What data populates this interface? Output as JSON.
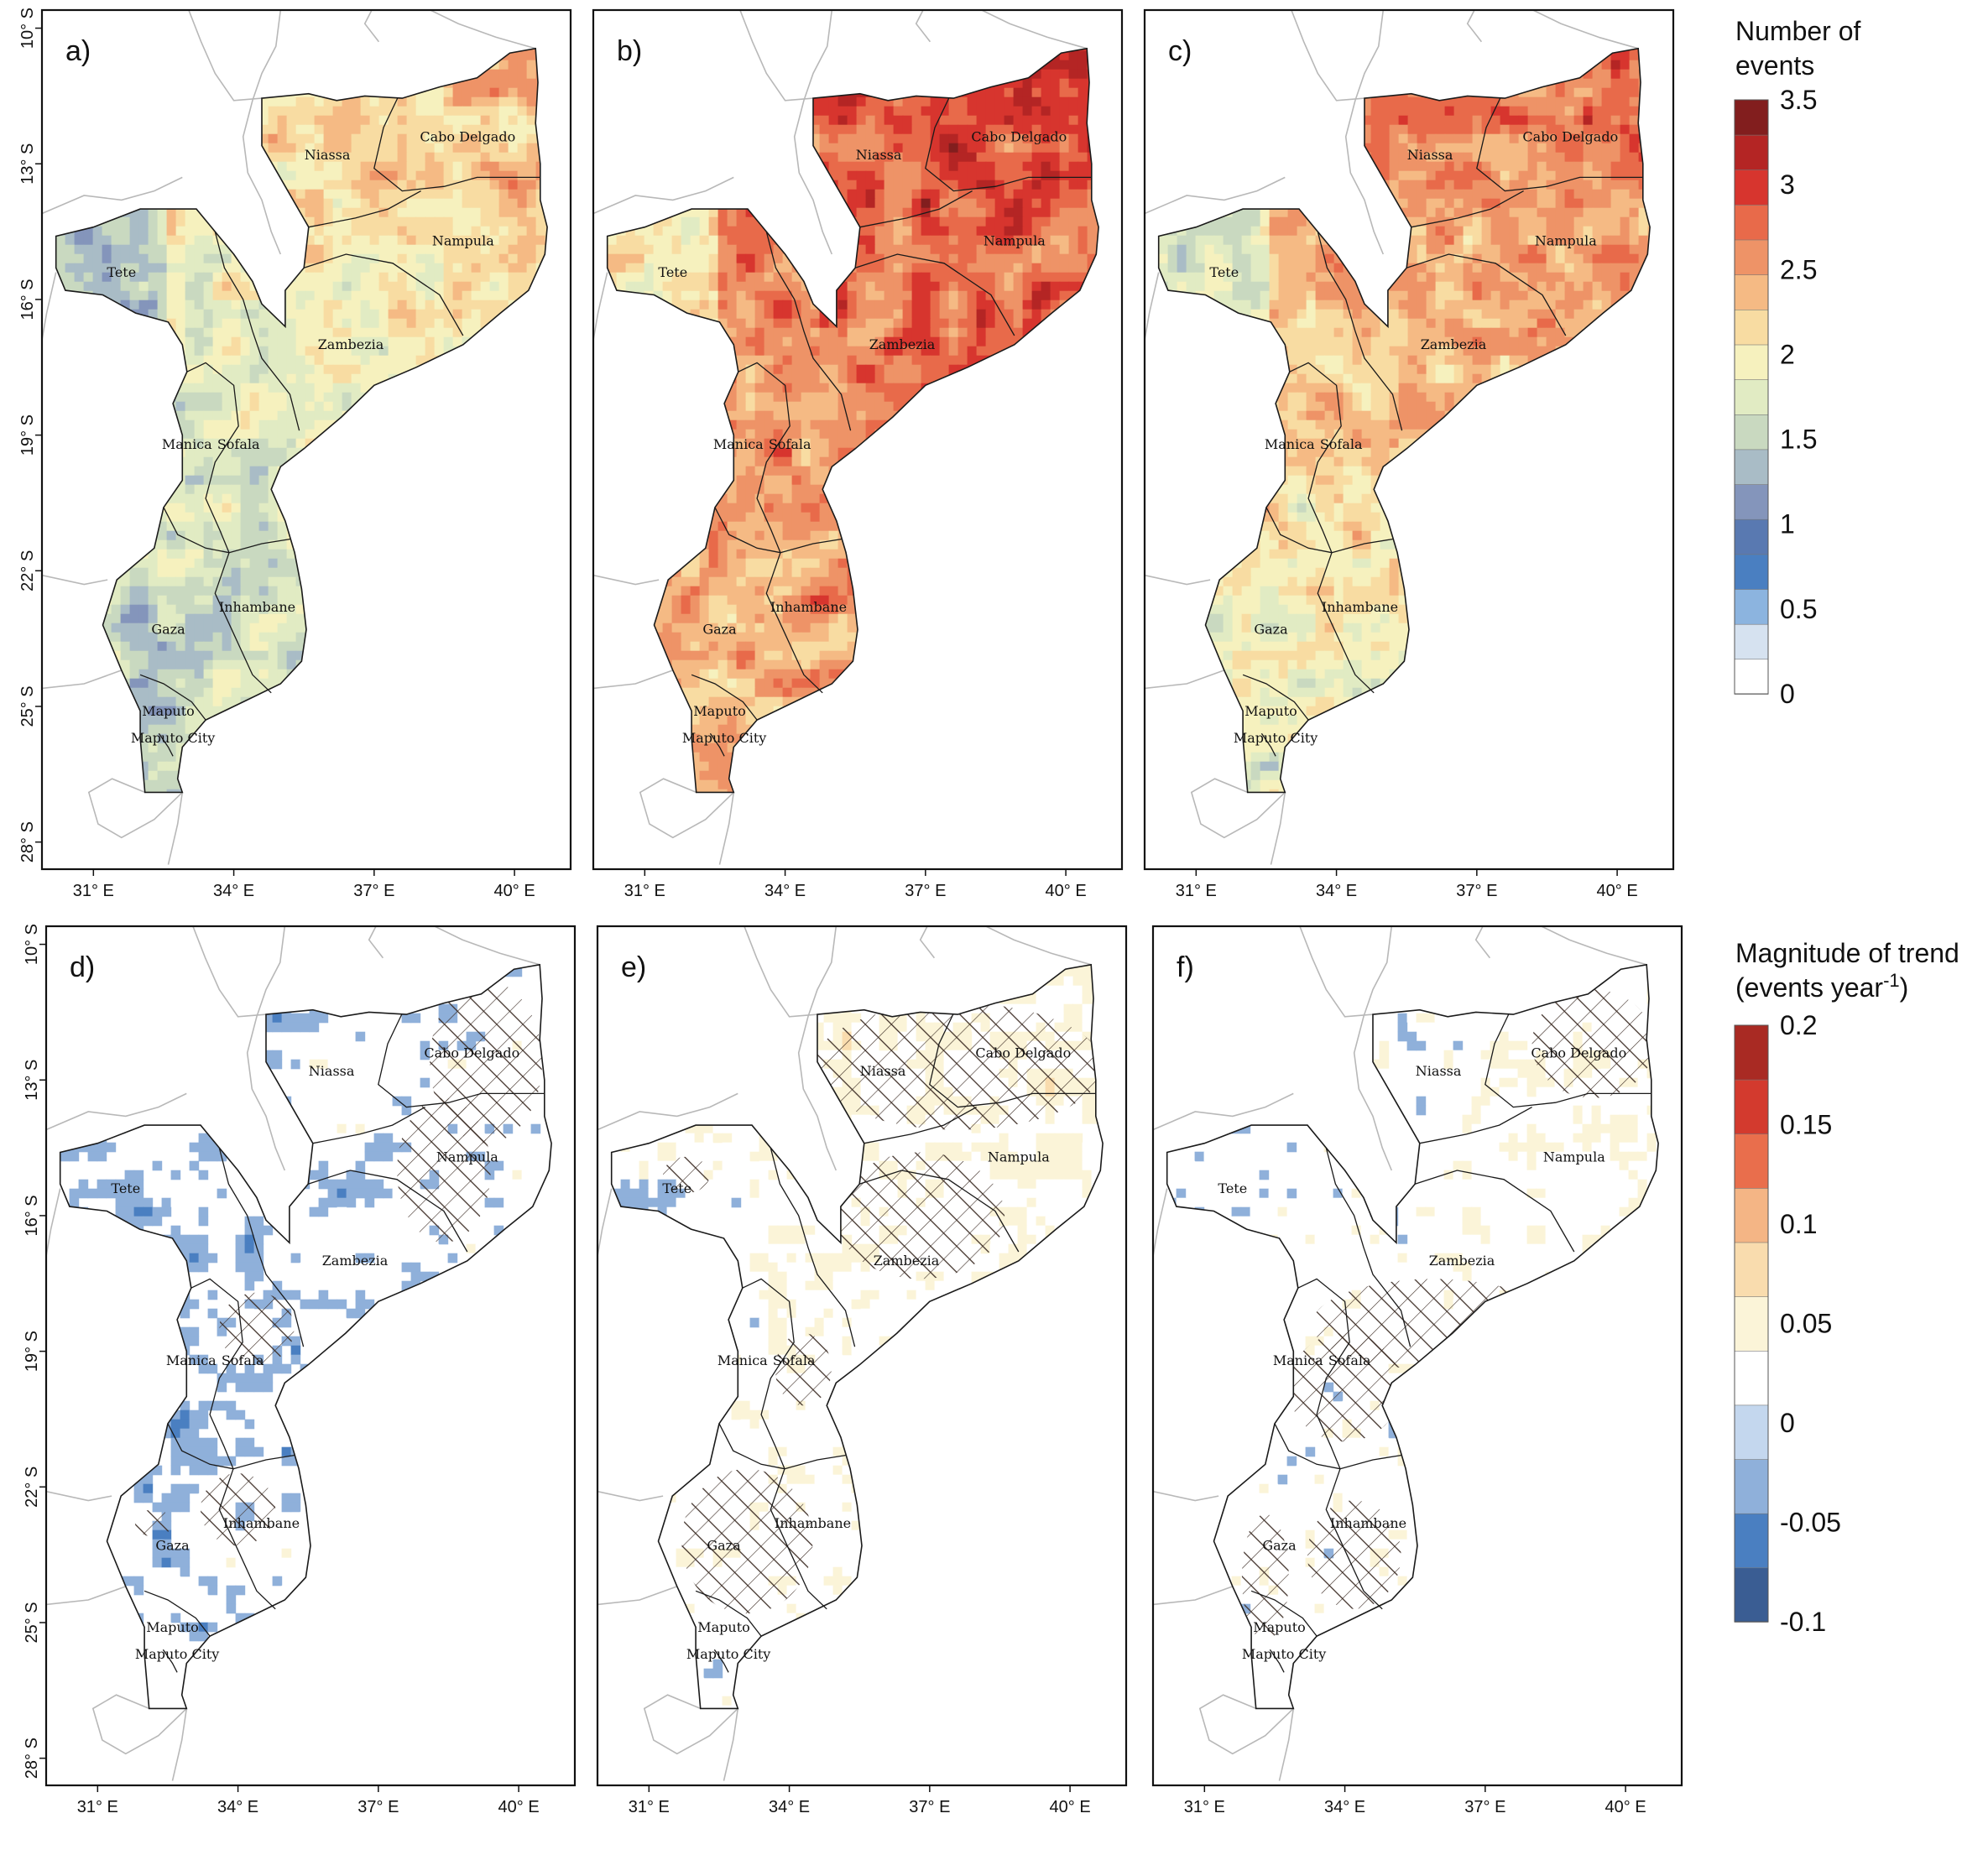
{
  "colors": {
    "frame": "#111111",
    "border_gray": "#b8b8b8",
    "province_line": "#1a1a1a",
    "hatch": "#3a2a22",
    "count_scale": [
      "#ffffff",
      "#d6e2f0",
      "#8cb4df",
      "#4a7fc1",
      "#5979b1",
      "#8495bb",
      "#a9bcc6",
      "#c9d9c0",
      "#e1ebc3",
      "#f6f1be",
      "#f8dca2",
      "#f5ba84",
      "#ee9367",
      "#e86a4a",
      "#d7352e",
      "#b42524",
      "#821e1e"
    ],
    "trend_scale": [
      "#3a5d93",
      "#4a7fc1",
      "#8fb0da",
      "#c4d7ee",
      "#ffffff",
      "#fbf4d8",
      "#f9dcae",
      "#f4b585",
      "#e96e4c",
      "#d33a2e",
      "#a92a23"
    ]
  },
  "shared_axes": {
    "x_ticks": [
      "31° E",
      "34° E",
      "37° E",
      "40° E"
    ],
    "y_ticks": [
      "10° S",
      "13° S",
      "16° S",
      "19° S",
      "22° S",
      "25° S",
      "28° S"
    ]
  },
  "panels": [
    {
      "id": "a",
      "label": "a)",
      "row": 0,
      "col": 0,
      "kind": "count",
      "mean_level": 1.7,
      "trend_north": 0.3,
      "trend_south": -0.4
    },
    {
      "id": "b",
      "label": "b)",
      "row": 0,
      "col": 1,
      "kind": "count",
      "mean_level": 2.5,
      "trend_north": 0.8,
      "trend_south": 0.3
    },
    {
      "id": "c",
      "label": "c)",
      "row": 0,
      "col": 2,
      "kind": "count",
      "mean_level": 2.1,
      "trend_north": 0.6,
      "trend_south": -0.2
    },
    {
      "id": "d",
      "label": "d)",
      "row": 1,
      "col": 0,
      "kind": "trend",
      "coverage": 0.35
    },
    {
      "id": "e",
      "label": "e)",
      "row": 1,
      "col": 1,
      "kind": "trend",
      "coverage": 0.6
    },
    {
      "id": "f",
      "label": "f)",
      "row": 1,
      "col": 2,
      "kind": "trend",
      "coverage": 0.5
    }
  ],
  "provinces": [
    "Niassa",
    "Cabo Delgado",
    "Nampula",
    "Tete",
    "Zambezia",
    "Manica",
    "Sofala",
    "Inhambane",
    "Gaza",
    "Maputo",
    "Maputo City"
  ],
  "legends": [
    {
      "id": "count",
      "title_line1": "Number of",
      "title_line2": "events",
      "tick_labels": [
        "3.5",
        "3",
        "2.5",
        "2",
        "1.5",
        "1",
        "0.5",
        "0"
      ]
    },
    {
      "id": "trend",
      "title_line1": "Magnitude of trend",
      "title_line2_pre": "(events year",
      "title_line2_sup": "-1",
      "title_line2_post": ")",
      "tick_labels": [
        "0.2",
        "0.15",
        "0.1",
        "0.05",
        "0",
        "-0.05",
        "-0.1"
      ]
    }
  ]
}
